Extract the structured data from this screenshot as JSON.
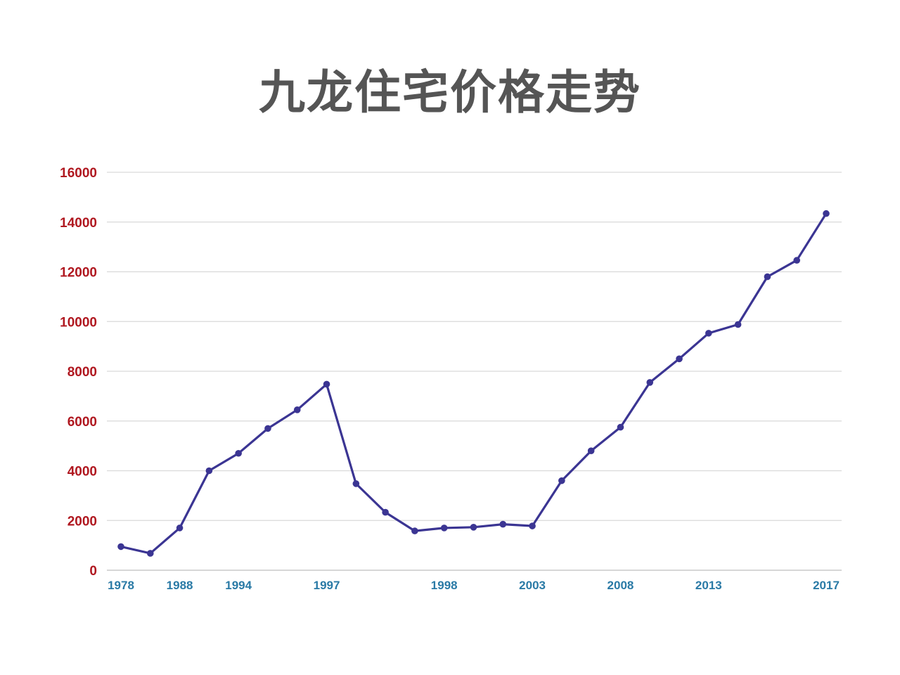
{
  "chart_data": {
    "type": "line",
    "title": "九龙住宅价格走势",
    "xlabel": "",
    "ylabel": "",
    "ylim": [
      0,
      16000
    ],
    "yticks": [
      "0",
      "2000",
      "4000",
      "6000",
      "8000",
      "10000",
      "12000",
      "14000",
      "16000"
    ],
    "xtick_labels": [
      {
        "index": 0,
        "label": "1978"
      },
      {
        "index": 2,
        "label": "1988"
      },
      {
        "index": 4,
        "label": "1994"
      },
      {
        "index": 7,
        "label": "1997"
      },
      {
        "index": 11,
        "label": "1998"
      },
      {
        "index": 14,
        "label": "2003"
      },
      {
        "index": 17,
        "label": "2008"
      },
      {
        "index": 20,
        "label": "2013"
      },
      {
        "index": 24,
        "label": "2017"
      }
    ],
    "grid": true,
    "legend": "none",
    "colors": {
      "line": "#3b3593",
      "ytick": "#b01820",
      "xtick": "#2a7aa6",
      "grid": "#d9d9d9",
      "title": "#555555"
    },
    "series": [
      {
        "values": [
          950,
          680,
          1700,
          4000,
          4700,
          5700,
          6450,
          7480,
          3480,
          2330,
          1580,
          1700,
          1730,
          1850,
          1780,
          3600,
          4800,
          5750,
          7550,
          8500,
          9530,
          9880,
          11800,
          12460,
          14340
        ]
      }
    ]
  }
}
